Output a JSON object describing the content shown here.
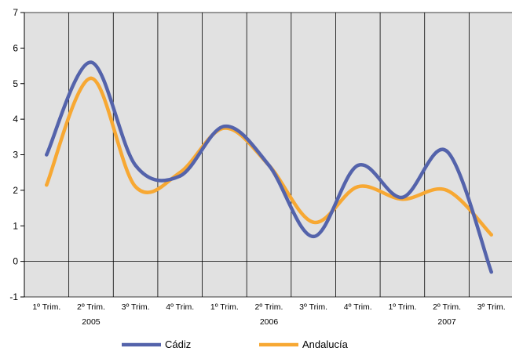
{
  "chart_data": {
    "type": "line",
    "title": "",
    "xlabel": "",
    "ylabel": "",
    "ylim": [
      -1,
      7
    ],
    "yticks": [
      -1,
      0,
      1,
      2,
      3,
      4,
      5,
      6,
      7
    ],
    "grid": "vertical lines at category boundaries; horizontal line at 0",
    "categories": [
      "1º Trim.",
      "2º Trim.",
      "3º Trim.",
      "4º Trim.",
      "1º Trim.",
      "2º Trim.",
      "3º Trim.",
      "4º Trim.",
      "1º Trim.",
      "2º Trim.",
      "3º Trim."
    ],
    "years": [
      {
        "label": "2005",
        "under_category": 1
      },
      {
        "label": "2006",
        "under_category": 5
      },
      {
        "label": "2007",
        "under_category": 9
      }
    ],
    "legend_position": "bottom",
    "series": [
      {
        "name": "Cádiz",
        "color": "#5463ab",
        "values": [
          3.0,
          5.6,
          2.7,
          2.4,
          3.8,
          2.7,
          0.7,
          2.7,
          1.8,
          3.1,
          -0.3
        ]
      },
      {
        "name": "Andalucía",
        "color": "#f7a833",
        "values": [
          2.15,
          5.15,
          2.1,
          2.5,
          3.75,
          2.7,
          1.1,
          2.1,
          1.75,
          2.0,
          0.75
        ]
      }
    ]
  }
}
